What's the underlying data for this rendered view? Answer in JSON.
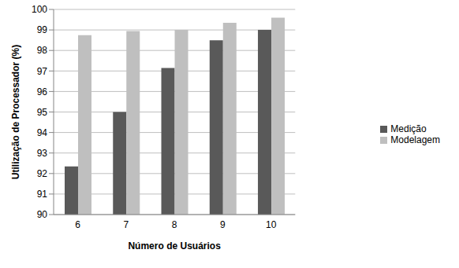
{
  "chart_data": {
    "type": "bar",
    "x_label": "Número de Usuários",
    "y_label": "Utilização de Processador (%)",
    "categories": [
      "6",
      "7",
      "8",
      "9",
      "10"
    ],
    "series": [
      {
        "name": "Medição",
        "color": "#595959",
        "values": [
          92.35,
          95.0,
          97.15,
          98.5,
          99.0
        ]
      },
      {
        "name": "Modelagem",
        "color": "#bfbfbf",
        "values": [
          98.75,
          98.95,
          99.0,
          99.35,
          99.6
        ]
      }
    ],
    "ylim": [
      90,
      100
    ],
    "yticks": [
      90,
      91,
      92,
      93,
      94,
      95,
      96,
      97,
      98,
      99,
      100
    ],
    "grid": true,
    "legend": "right"
  }
}
